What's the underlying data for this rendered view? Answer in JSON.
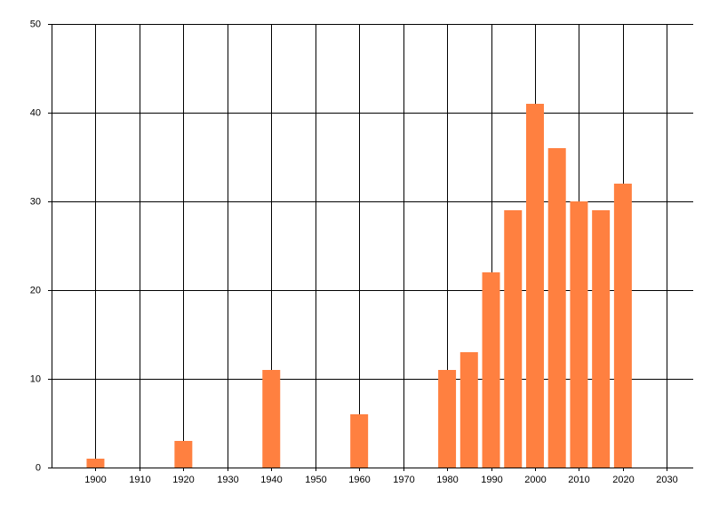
{
  "chart_data": {
    "type": "bar",
    "x": [
      1900,
      1920,
      1940,
      1960,
      1980,
      1985,
      1990,
      1995,
      2000,
      2005,
      2010,
      2015,
      2020
    ],
    "values": [
      1,
      3,
      11,
      6,
      11,
      13,
      22,
      29,
      41,
      36,
      30,
      29,
      32
    ],
    "color": "#ff8040",
    "xlim": [
      1890,
      2036
    ],
    "xticks": [
      1900,
      1910,
      1920,
      1930,
      1940,
      1950,
      1960,
      1970,
      1980,
      1990,
      2000,
      2010,
      2020,
      2030
    ],
    "ylim": [
      0,
      50
    ],
    "yticks": [
      0,
      10,
      20,
      30,
      40,
      50
    ],
    "grid": true
  }
}
